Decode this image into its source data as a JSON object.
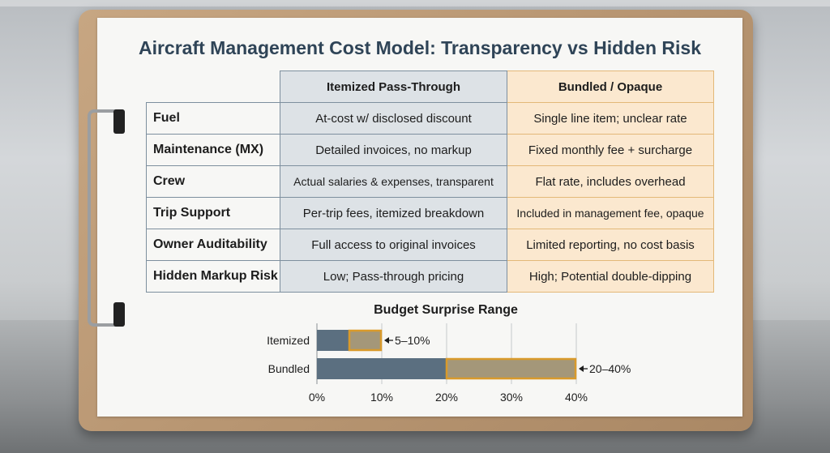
{
  "title": "Aircraft Management Cost Model: Transparency vs Hidden Risk",
  "table": {
    "columns": [
      "Itemized Pass-Through",
      "Bundled / Opaque"
    ],
    "rows": [
      {
        "label": "Fuel",
        "itemized": "At-cost w/ disclosed discount",
        "bundled": "Single line item; unclear rate"
      },
      {
        "label": "Maintenance (MX)",
        "itemized": "Detailed invoices, no markup",
        "bundled": "Fixed monthly fee + surcharge"
      },
      {
        "label": "Crew",
        "itemized": "Actual salaries & expenses, transparent",
        "bundled": "Flat rate, includes overhead"
      },
      {
        "label": "Trip Support",
        "itemized": "Per-trip fees, itemized breakdown",
        "bundled": "Included in management fee, opaque"
      },
      {
        "label": "Owner Auditability",
        "itemized": "Full access to original invoices",
        "bundled": "Limited reporting, no cost basis"
      },
      {
        "label": "Hidden Markup Risk",
        "itemized": "Low; Pass-through pricing",
        "bundled": "High; Potential double-dipping"
      }
    ]
  },
  "chart_data": {
    "type": "bar",
    "orientation": "horizontal",
    "title": "Budget Surprise Range",
    "categories": [
      "Itemized",
      "Bundled"
    ],
    "series": [
      {
        "values": [
          5,
          20
        ]
      },
      {
        "values": [
          5,
          20
        ]
      }
    ],
    "range_labels": [
      "5–10%",
      "20–40%"
    ],
    "xlim": [
      0,
      40
    ],
    "xticks": [
      0,
      10,
      20,
      30,
      40
    ],
    "xtick_labels": [
      "0%",
      "10%",
      "20%",
      "30%",
      "40%"
    ],
    "grid": true,
    "colors": {
      "base": "#5b6f80",
      "range_fill": "#a49779",
      "range_border": "#d99a2b"
    }
  }
}
